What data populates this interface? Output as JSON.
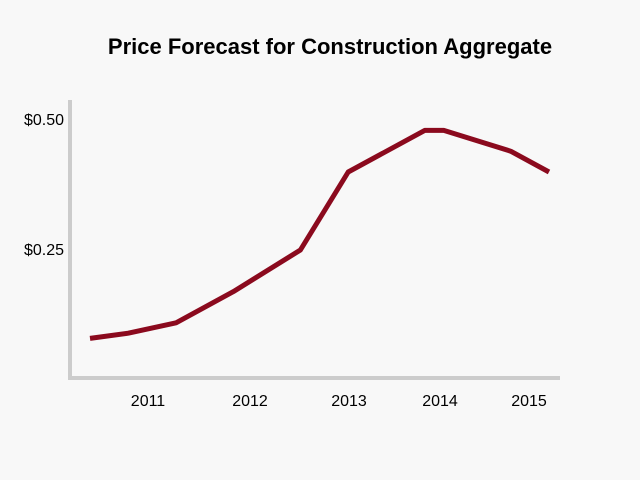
{
  "chart_data": {
    "type": "line",
    "title": "Price Forecast for Construction Aggregate",
    "xlabel": "",
    "ylabel": "",
    "x_ticks": [
      "2011",
      "2012",
      "2013",
      "2014",
      "2015"
    ],
    "y_ticks": [
      "$0.50",
      "$0.25"
    ],
    "ylim": [
      0,
      0.5
    ],
    "grid": false,
    "legend": "none",
    "series": [
      {
        "color": "#8b0a1e",
        "points": [
          {
            "x": 2010.4,
            "y": 0.08
          },
          {
            "x": 2010.8,
            "y": 0.09
          },
          {
            "x": 2011.3,
            "y": 0.11
          },
          {
            "x": 2011.9,
            "y": 0.17
          },
          {
            "x": 2012.6,
            "y": 0.25
          },
          {
            "x": 2013.1,
            "y": 0.4
          },
          {
            "x": 2013.9,
            "y": 0.48
          },
          {
            "x": 2014.1,
            "y": 0.48
          },
          {
            "x": 2014.8,
            "y": 0.44
          },
          {
            "x": 2015.2,
            "y": 0.4
          }
        ]
      }
    ],
    "axis_color": "#cccccc"
  }
}
